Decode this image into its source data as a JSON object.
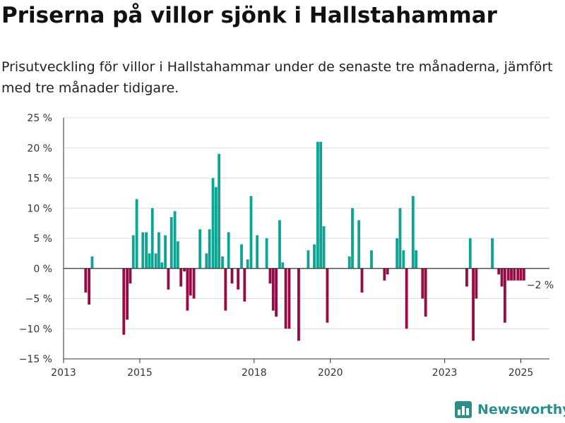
{
  "title": "Priserna på villor sjönk i Hallstahammar",
  "subtitle": "Prisutveckling för villor i Hallstahammar under de senaste tre månaderna, jämfört med tre månader tidigare.",
  "brand": "Newsworthy",
  "colors": {
    "positive": "#0fa393",
    "negative": "#990a45",
    "grid": "#dddddd",
    "axis": "#333333",
    "brand": "#2a8f8a"
  },
  "chart_data": {
    "type": "bar",
    "title": "Priserna på villor sjönk i Hallstahammar",
    "xlabel": "",
    "ylabel": "",
    "ylim": [
      -15,
      25
    ],
    "xlim": [
      2013.0,
      2025.75
    ],
    "yticks": [
      -15,
      -10,
      -5,
      0,
      5,
      10,
      15,
      20,
      25
    ],
    "ytick_labels": [
      "−15 %",
      "−10 %",
      "−5 %",
      "0 %",
      "5 %",
      "10 %",
      "15 %",
      "20 %",
      "25 %"
    ],
    "xticks": [
      2013,
      2015,
      2018,
      2020,
      2023,
      2025
    ],
    "xtick_labels": [
      "2013",
      "2015",
      "2018",
      "2020",
      "2023",
      "2025"
    ],
    "grid": true,
    "annotation": {
      "x": 2025.75,
      "y": -2,
      "text": "−2 %"
    },
    "series": [
      {
        "x": [
          2013.58,
          2013.67,
          2013.75,
          2014.58,
          2014.67,
          2014.75,
          2014.83,
          2014.92,
          2015.08,
          2015.17,
          2015.25,
          2015.33,
          2015.42,
          2015.5,
          2015.58,
          2015.67,
          2015.75,
          2015.83,
          2015.92,
          2016.0,
          2016.08,
          2016.17,
          2016.25,
          2016.33,
          2016.42,
          2016.58,
          2016.75,
          2016.83,
          2016.92,
          2017.0,
          2017.08,
          2017.17,
          2017.25,
          2017.33,
          2017.42,
          2017.58,
          2017.67,
          2017.75,
          2017.83,
          2017.92,
          2018.08,
          2018.33,
          2018.42,
          2018.5,
          2018.58,
          2018.67,
          2018.75,
          2018.83,
          2018.92,
          2019.17,
          2019.42,
          2019.58,
          2019.67,
          2019.75,
          2019.83,
          2019.92,
          2020.5,
          2020.58,
          2020.75,
          2020.83,
          2021.08,
          2021.42,
          2021.5,
          2021.75,
          2021.83,
          2021.92,
          2022.0,
          2022.17,
          2022.25,
          2022.42,
          2022.5,
          2023.58,
          2023.67,
          2023.75,
          2023.83,
          2024.25,
          2024.42,
          2024.5,
          2024.58,
          2024.67,
          2024.75,
          2024.83,
          2024.92,
          2025.0,
          2025.08
        ],
        "values": [
          -4,
          -6,
          2,
          -11,
          -8.5,
          -2.5,
          5.5,
          11.5,
          6,
          6,
          2.5,
          10,
          2.5,
          6,
          1,
          5.5,
          -3.5,
          8.5,
          9.5,
          4.5,
          -3,
          -0.5,
          -7,
          -4.5,
          -5,
          6.5,
          2.5,
          6.5,
          15,
          13.5,
          19,
          2,
          -7,
          6,
          -2.5,
          -3.5,
          4,
          -5.5,
          1.5,
          12,
          5.5,
          5,
          -2.5,
          -7,
          -8,
          8,
          1,
          -10,
          -10,
          -12,
          3,
          4,
          21,
          21,
          7,
          -9,
          2,
          10,
          8,
          -4,
          3,
          -2,
          -1,
          5,
          10,
          3,
          -10,
          12,
          3,
          -5,
          -8,
          -3,
          5,
          -12,
          -5,
          5,
          -1,
          -3,
          -9,
          -2,
          -2,
          -2,
          -2,
          -2,
          -2
        ]
      }
    ]
  }
}
